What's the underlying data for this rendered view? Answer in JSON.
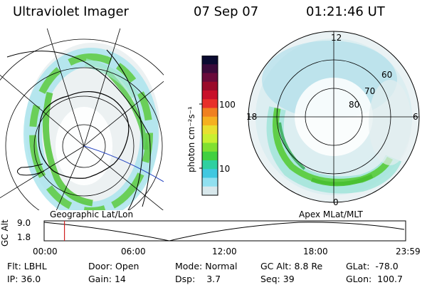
{
  "header": {
    "instrument": "Ultraviolet Imager",
    "date": "07 Sep 07",
    "time": "01:21:46 UT"
  },
  "geo_panel": {
    "label": "Geographic Lat/Lon"
  },
  "apex_panel": {
    "label": "Apex MLat/MLT",
    "mlt_labels": [
      "12",
      "18",
      "6",
      "0"
    ],
    "mlat_labels": [
      "60",
      "70",
      "80"
    ]
  },
  "colorbar": {
    "unit_label": "photon cm⁻²s⁻¹",
    "ticks": [
      "100",
      "10"
    ],
    "colors": [
      "#0a0a30",
      "#3a0a3a",
      "#6a0a3a",
      "#9a0a2a",
      "#c8102a",
      "#e8302a",
      "#f08020",
      "#f5b020",
      "#e8e030",
      "#c8f030",
      "#80e030",
      "#40d040",
      "#30d0a0",
      "#40c8e0",
      "#90e0f0",
      "#d8e8ec"
    ]
  },
  "timeline": {
    "y_axis_label": "GC Alt",
    "y_ticks": [
      "9.0",
      "1.8"
    ],
    "x_ticks": [
      "00:00",
      "06:00",
      "12:00",
      "18:00",
      "23:59"
    ],
    "current_time_marker": "01:21",
    "marker_color": "#d02020"
  },
  "status": {
    "filter": {
      "label": "Flt:",
      "value": "LBHL"
    },
    "ip": {
      "label": "IP:",
      "value": "36.0"
    },
    "door": {
      "label": "Door:",
      "value": "Open"
    },
    "gain": {
      "label": "Gain:",
      "value": "14"
    },
    "mode": {
      "label": "Mode:",
      "value": "Normal"
    },
    "dsp": {
      "label": "Dsp:",
      "value": "3.7"
    },
    "gc_alt": {
      "label": "GC Alt:",
      "value": "8.8 Re"
    },
    "seq": {
      "label": "Seq:",
      "value": "39"
    },
    "glat": {
      "label": "GLat:",
      "value": "-78.0"
    },
    "glon": {
      "label": "GLon:",
      "value": "100.7"
    }
  }
}
